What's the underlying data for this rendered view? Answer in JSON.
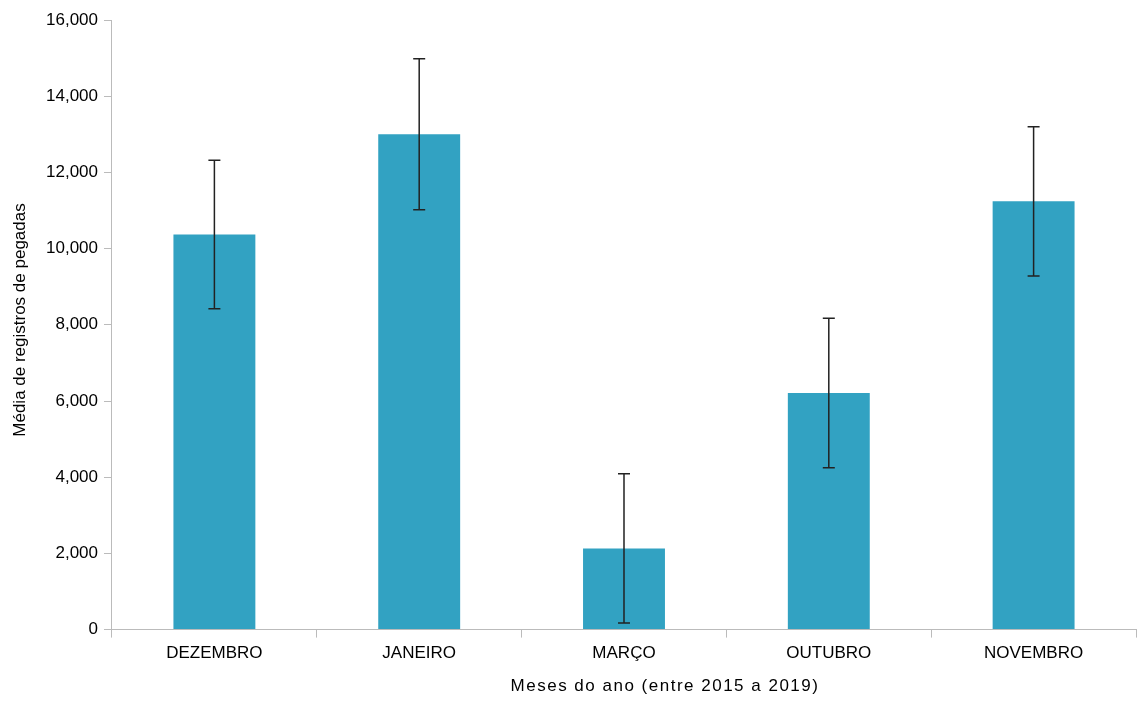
{
  "chart_data": {
    "type": "bar",
    "xlabel": "Meses do ano (entre 2015 a 2019)",
    "ylabel": "Média de registros de pegadas",
    "categories": [
      "DEZEMBRO",
      "JANEIRO",
      "MARÇO",
      "OUTUBRO",
      "NOVEMBRO"
    ],
    "values": [
      10370,
      13000,
      2130,
      6210,
      11240
    ],
    "errors": [
      1950,
      1980,
      1960,
      1960,
      1960
    ],
    "color": "#32a2c2",
    "ylim": [
      0,
      16000
    ],
    "yticks": [
      {
        "value": 0,
        "label": "0"
      },
      {
        "value": 2000,
        "label": "2,000"
      },
      {
        "value": 4000,
        "label": "4,000"
      },
      {
        "value": 6000,
        "label": "6,000"
      },
      {
        "value": 8000,
        "label": "8,000"
      },
      {
        "value": 10000,
        "label": "10,000"
      },
      {
        "value": 12000,
        "label": "12,000"
      },
      {
        "value": 14000,
        "label": "14,000"
      },
      {
        "value": 16000,
        "label": "16,000"
      }
    ],
    "grid": false,
    "legend": false
  }
}
